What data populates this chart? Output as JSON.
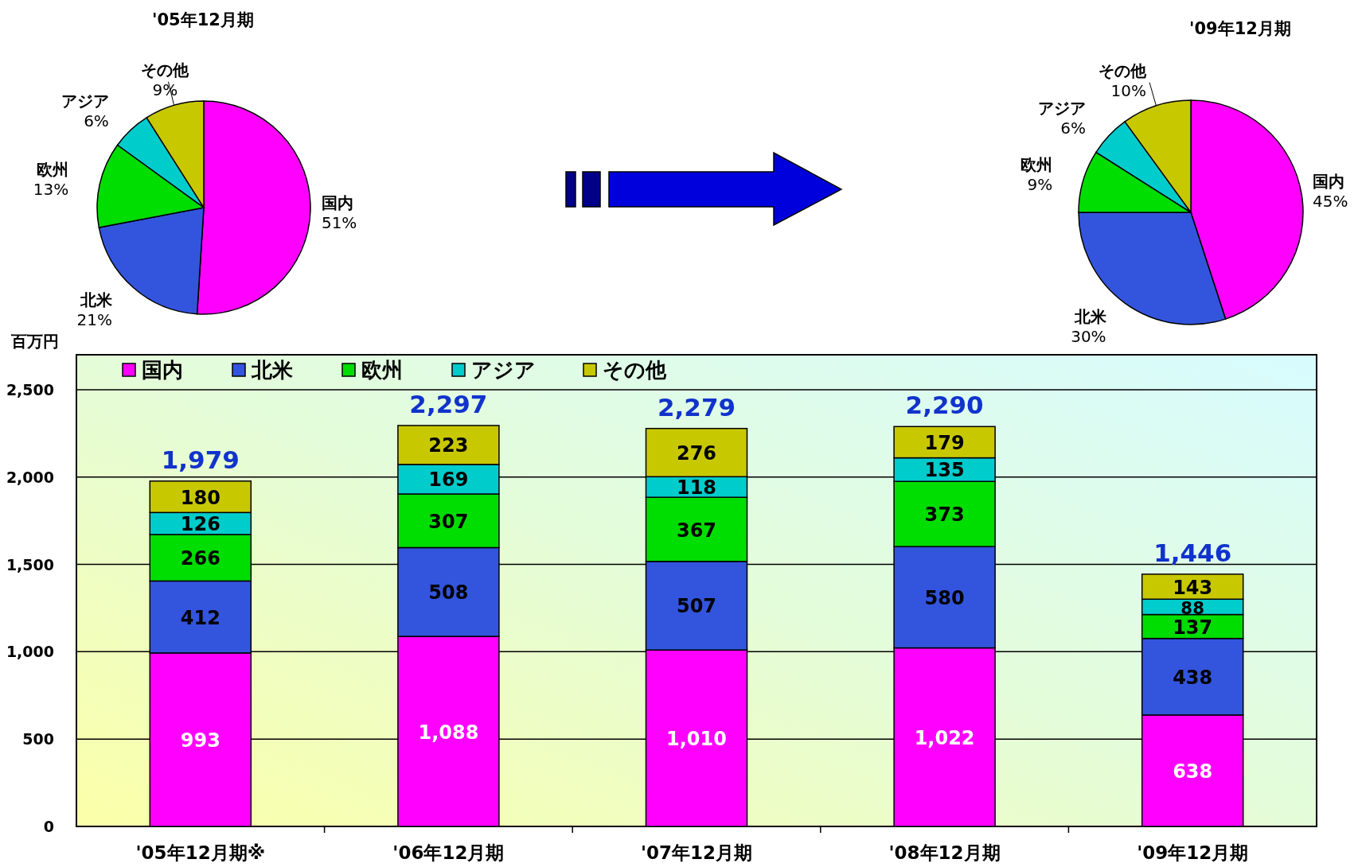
{
  "chart_data": [
    {
      "type": "pie",
      "title": "'05年12月期",
      "categories": [
        "国内",
        "北米",
        "欧州",
        "アジア",
        "その他"
      ],
      "values": [
        51,
        21,
        13,
        6,
        9
      ],
      "value_labels": [
        "51%",
        "21%",
        "13%",
        "6%",
        "9%"
      ],
      "colors": [
        "#ff00ff",
        "#3355dd",
        "#00dd00",
        "#00cccc",
        "#c8c800"
      ]
    },
    {
      "type": "pie",
      "title": "'09年12月期",
      "categories": [
        "国内",
        "北米",
        "欧州",
        "アジア",
        "その他"
      ],
      "values": [
        45,
        30,
        9,
        6,
        10
      ],
      "value_labels": [
        "45%",
        "30%",
        "9%",
        "6%",
        "10%"
      ],
      "colors": [
        "#ff00ff",
        "#3355dd",
        "#00dd00",
        "#00cccc",
        "#c8c800"
      ]
    },
    {
      "type": "bar",
      "stacked": true,
      "ylabel": "百万円",
      "categories": [
        "'05年12月期※",
        "'06年12月期",
        "'07年12月期",
        "'08年12月期",
        "'09年12月期"
      ],
      "series": [
        {
          "name": "国内",
          "color": "#ff00ff",
          "values": [
            993,
            1088,
            1010,
            1022,
            638
          ],
          "value_labels": [
            "993",
            "1,088",
            "1,010",
            "1,022",
            "638"
          ]
        },
        {
          "name": "北米",
          "color": "#3355dd",
          "values": [
            412,
            508,
            507,
            580,
            438
          ]
        },
        {
          "name": "欧州",
          "color": "#00dd00",
          "values": [
            266,
            307,
            367,
            373,
            137
          ]
        },
        {
          "name": "アジア",
          "color": "#00cccc",
          "values": [
            126,
            169,
            118,
            135,
            88
          ]
        },
        {
          "name": "その他",
          "color": "#c8c800",
          "values": [
            180,
            223,
            276,
            179,
            143
          ]
        }
      ],
      "totals": [
        "1,979",
        "2,297",
        "2,279",
        "2,290",
        "1,446"
      ],
      "data_labels": true,
      "ylim": [
        0,
        2700
      ],
      "yticks": [
        0,
        500,
        {
          "value": 1000,
          "label": "1,000"
        },
        {
          "value": 1500,
          "label": "1,500"
        },
        {
          "value": 2000,
          "label": "2,000"
        },
        {
          "value": 2500,
          "label": "2,500"
        }
      ],
      "grid": "y",
      "legend": "top left"
    }
  ]
}
